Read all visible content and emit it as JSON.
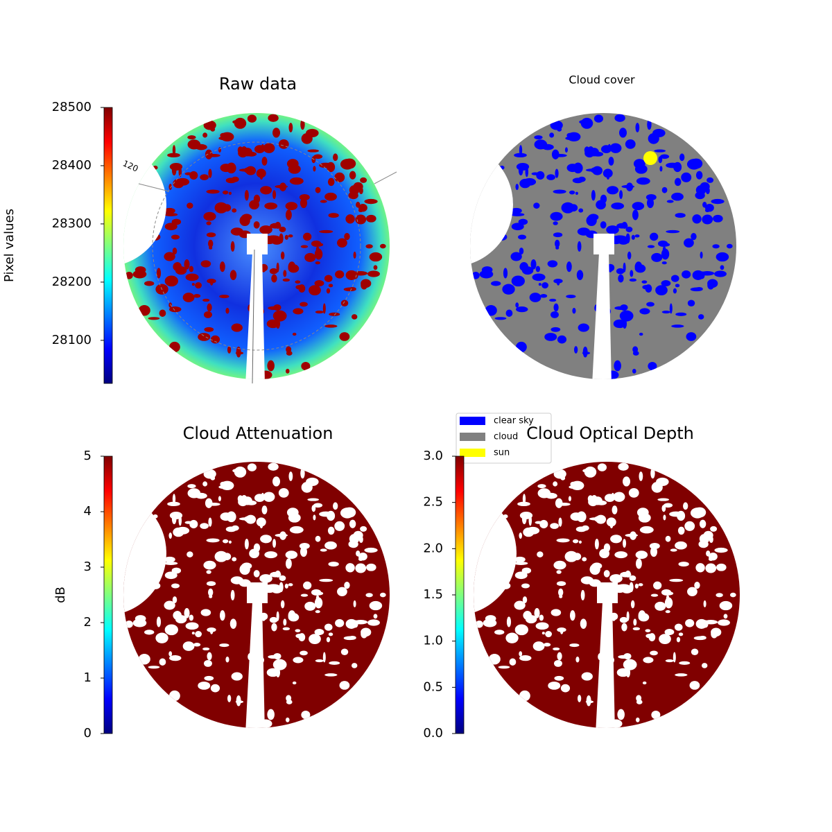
{
  "chart_data": [
    {
      "type": "image",
      "title": "Raw data",
      "annotation": "120",
      "colorbar": {
        "label": "Pixel values",
        "colormap": "jet",
        "lim": [
          28026,
          28500
        ],
        "ticks": [
          28100,
          28200,
          28300,
          28400,
          28500
        ]
      }
    },
    {
      "type": "image",
      "title": "Cloud cover",
      "legend": [
        {
          "name": "clear sky",
          "color": "#0000ff"
        },
        {
          "name": "cloud",
          "color": "#808080"
        },
        {
          "name": "sun",
          "color": "#ffff00"
        }
      ]
    },
    {
      "type": "image",
      "title": "Cloud Attenuation",
      "colorbar": {
        "label": "dB",
        "colormap": "jet",
        "lim": [
          0,
          5
        ],
        "ticks": [
          0,
          1,
          2,
          3,
          4,
          5
        ]
      }
    },
    {
      "type": "image",
      "title": "Cloud Optical Depth",
      "colorbar": {
        "colormap": "jet",
        "lim": [
          0,
          3
        ],
        "ticks": [
          {
            "value": 0,
            "label": "0.0"
          },
          {
            "value": 0.5,
            "label": "0.5"
          },
          {
            "value": 1,
            "label": "1.0"
          },
          {
            "value": 1.5,
            "label": "1.5"
          },
          {
            "value": 2,
            "label": "2.0"
          },
          {
            "value": 2.5,
            "label": "2.5"
          },
          {
            "value": 3,
            "label": "3.0"
          }
        ]
      }
    }
  ]
}
